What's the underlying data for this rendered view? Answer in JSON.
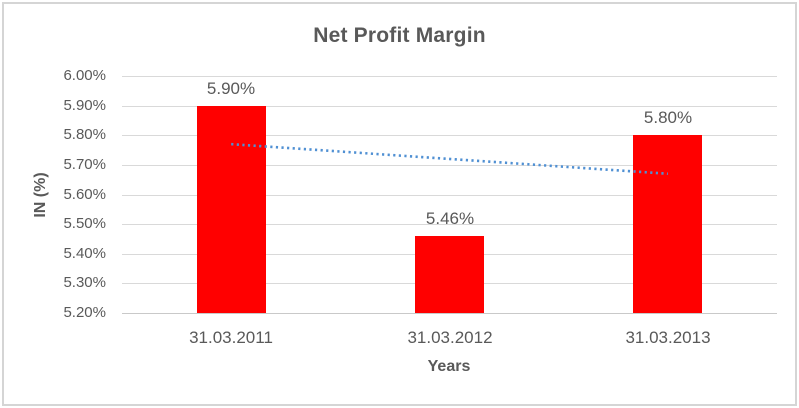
{
  "window": {
    "background": "#FFFFFF",
    "frame_border_color": "#D5D5D5"
  },
  "colors": {
    "text": "#595959",
    "gridline": "#D9D9D9",
    "axis_line": "#C9C9C9",
    "bar": "#FF0000",
    "trendline": "#5090D3"
  },
  "chart_data": {
    "type": "bar",
    "title": "Net Profit Margin",
    "xlabel": "Years",
    "ylabel": "IN (%)",
    "categories": [
      "31.03.2011",
      "31.03.2012",
      "31.03.2013"
    ],
    "values": [
      5.9,
      5.46,
      5.8
    ],
    "data_labels": [
      "5.90%",
      "5.46%",
      "5.80%"
    ],
    "series_name": "Net Profit Margin",
    "unit": "%",
    "ylim": [
      5.2,
      6.0
    ],
    "ytick_step": 0.1,
    "yticks": [
      "6.00%",
      "5.90%",
      "5.80%",
      "5.70%",
      "5.60%",
      "5.50%",
      "5.40%",
      "5.30%",
      "5.20%"
    ],
    "ytick_values": [
      6.0,
      5.9,
      5.8,
      5.7,
      5.6,
      5.5,
      5.4,
      5.3,
      5.2
    ],
    "grid": true,
    "legend_position": "none",
    "trendline": {
      "style": "dotted",
      "color": "#5090D3",
      "start_value": 5.77,
      "end_value": 5.67,
      "start_category_index": 0,
      "end_category_index": 2
    }
  }
}
